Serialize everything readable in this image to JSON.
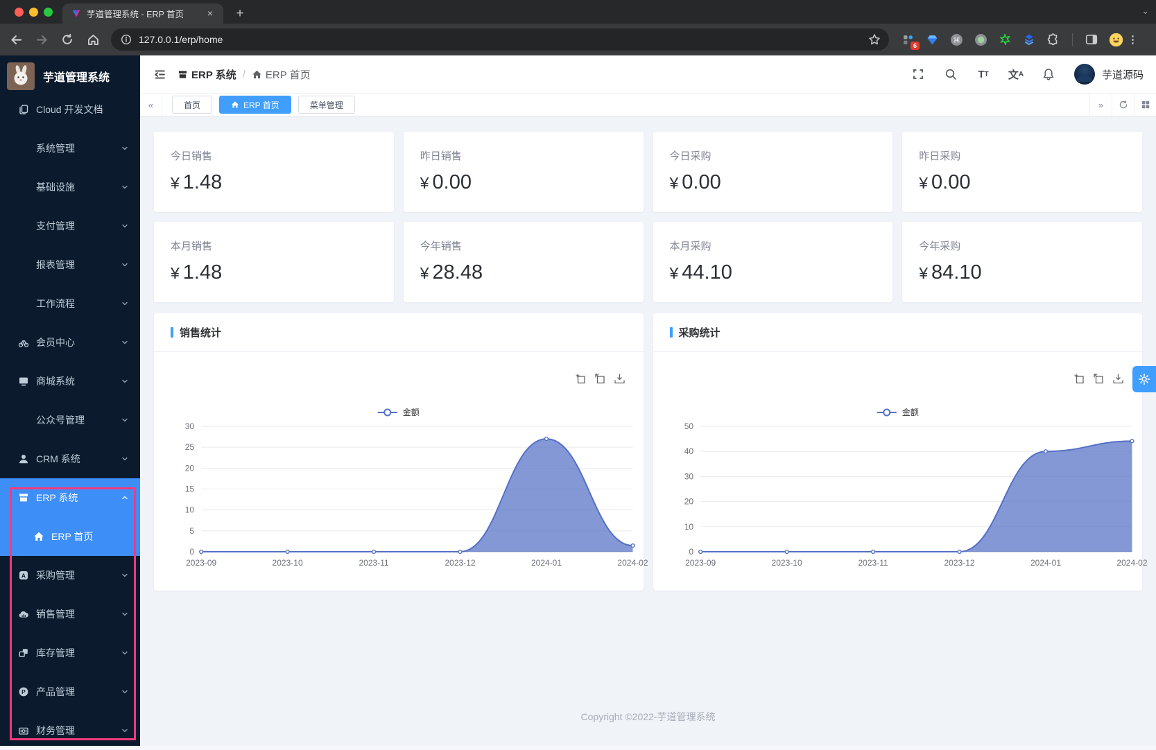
{
  "browser": {
    "tab_title": "芋道管理系统 - ERP 首页",
    "url": "127.0.0.1/erp/home",
    "extension_badge": "6"
  },
  "sidebar": {
    "title": "芋道管理系统",
    "annotation_color": "#f5397f",
    "items": [
      {
        "label": "Cloud 开发文档",
        "icon": "document"
      },
      {
        "label": "系统管理",
        "chevron": "down"
      },
      {
        "label": "基础设施",
        "chevron": "down"
      },
      {
        "label": "支付管理",
        "chevron": "down"
      },
      {
        "label": "报表管理",
        "chevron": "down"
      },
      {
        "label": "工作流程",
        "chevron": "down"
      },
      {
        "label": "会员中心",
        "icon": "member",
        "chevron": "down"
      },
      {
        "label": "商城系统",
        "icon": "mall",
        "chevron": "down"
      },
      {
        "label": "公众号管理",
        "chevron": "down"
      },
      {
        "label": "CRM 系统",
        "icon": "user",
        "chevron": "down"
      },
      {
        "label": "ERP 系统",
        "icon": "store",
        "chevron": "up",
        "active": true
      },
      {
        "label": "ERP 首页",
        "icon": "home",
        "active": true,
        "child": true
      },
      {
        "label": "采购管理",
        "icon": "purchase",
        "chevron": "down"
      },
      {
        "label": "销售管理",
        "icon": "sale",
        "chevron": "down"
      },
      {
        "label": "库存管理",
        "icon": "stock",
        "chevron": "down"
      },
      {
        "label": "产品管理",
        "icon": "product",
        "chevron": "down"
      },
      {
        "label": "财务管理",
        "icon": "finance",
        "chevron": "down"
      }
    ]
  },
  "header": {
    "breadcrumb": [
      {
        "label": "ERP 系统",
        "icon": "store"
      },
      {
        "label": "ERP 首页",
        "icon": "home"
      }
    ],
    "user": "芋道源码"
  },
  "tabs": [
    {
      "label": "首页",
      "active": false
    },
    {
      "label": "ERP 首页",
      "active": true,
      "icon": "home"
    },
    {
      "label": "菜单管理",
      "active": false
    }
  ],
  "stats": {
    "currency": "¥",
    "row1": [
      {
        "label": "今日销售",
        "value": "1.48"
      },
      {
        "label": "昨日销售",
        "value": "0.00"
      },
      {
        "label": "今日采购",
        "value": "0.00"
      },
      {
        "label": "昨日采购",
        "value": "0.00"
      }
    ],
    "row2": [
      {
        "label": "本月销售",
        "value": "1.48"
      },
      {
        "label": "今年销售",
        "value": "28.48"
      },
      {
        "label": "本月采购",
        "value": "44.10"
      },
      {
        "label": "今年采购",
        "value": "84.10"
      }
    ]
  },
  "chart_data": [
    {
      "type": "area",
      "title": "销售统计",
      "legend": "金额",
      "x": [
        "2023-09",
        "2023-10",
        "2023-11",
        "2023-12",
        "2024-01",
        "2024-02"
      ],
      "values": [
        0,
        0,
        0,
        0,
        27,
        1.48
      ],
      "ylim": [
        0,
        30
      ],
      "yticks": [
        0,
        5,
        10,
        15,
        20,
        25,
        30
      ],
      "line_color": "#5470c6",
      "area_color": "rgba(84,112,198,0.72)",
      "grid": true,
      "legend_position": "top-center"
    },
    {
      "type": "area",
      "title": "采购统计",
      "legend": "金额",
      "x": [
        "2023-09",
        "2023-10",
        "2023-11",
        "2023-12",
        "2024-01",
        "2024-02"
      ],
      "values": [
        0,
        0,
        0,
        0,
        40,
        44.1
      ],
      "ylim": [
        0,
        50
      ],
      "yticks": [
        0,
        10,
        20,
        30,
        40,
        50
      ],
      "line_color": "#5470c6",
      "area_color": "rgba(84,112,198,0.72)",
      "grid": true,
      "legend_position": "top-center"
    }
  ],
  "footer": {
    "copyright": "Copyright ©2022-芋道管理系统"
  }
}
